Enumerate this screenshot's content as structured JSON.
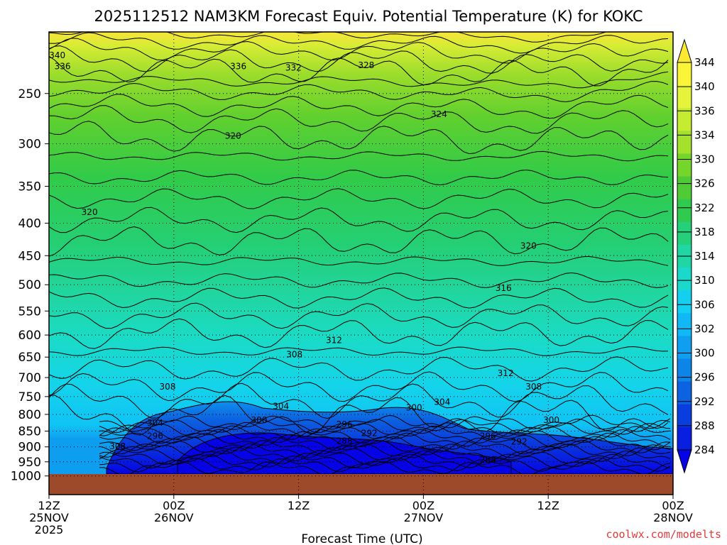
{
  "chart_data": {
    "type": "heatmap",
    "title": "2025112512 NAM3KM Forecast Equiv. Potential Temperature (K) for KOKC",
    "xlabel": "Forecast Time (UTC)",
    "ylabel": "",
    "x_ticks": [
      {
        "line1": "12Z",
        "line2": "25NOV",
        "line3": "2025",
        "hours": 0
      },
      {
        "line1": "00Z",
        "line2": "26NOV",
        "line3": "",
        "hours": 12
      },
      {
        "line1": "12Z",
        "line2": "",
        "line3": "",
        "hours": 24
      },
      {
        "line1": "00Z",
        "line2": "27NOV",
        "line3": "",
        "hours": 36
      },
      {
        "line1": "12Z",
        "line2": "",
        "line3": "",
        "hours": 48
      },
      {
        "line1": "00Z",
        "line2": "28NOV",
        "line3": "",
        "hours": 60
      }
    ],
    "y_ticks": [
      "250",
      "300",
      "350",
      "400",
      "450",
      "500",
      "550",
      "600",
      "650",
      "700",
      "750",
      "800",
      "850",
      "900",
      "950",
      "1000"
    ],
    "y_axis": "pressure (hPa), log scale, decreasing upward",
    "ylim": [
      1000,
      200
    ],
    "xlim": [
      0,
      60
    ],
    "colorbar": {
      "ticks": [
        "344",
        "340",
        "336",
        "334",
        "330",
        "326",
        "322",
        "318",
        "314",
        "310",
        "306",
        "302",
        "300",
        "296",
        "292",
        "288",
        "284"
      ],
      "colors": [
        "#fde832",
        "#fbf53a",
        "#e6f33b",
        "#c6ec31",
        "#a3e12d",
        "#76d52b",
        "#4fcc35",
        "#2fcb4e",
        "#25d07a",
        "#20d6a5",
        "#1ad9cc",
        "#14cff0",
        "#10b8f5",
        "#0e9ff0",
        "#0d85e8",
        "#0c62e0",
        "#0a3ddd",
        "#081ee0",
        "#0604e6"
      ]
    },
    "ground_color": "#9c4a2a",
    "contour_labels": [
      {
        "text": "340",
        "t": 0.8,
        "p": 218
      },
      {
        "text": "336",
        "t": 1.3,
        "p": 227
      },
      {
        "text": "336",
        "t": 18.2,
        "p": 227
      },
      {
        "text": "332",
        "t": 23.5,
        "p": 228
      },
      {
        "text": "328",
        "t": 30.5,
        "p": 226
      },
      {
        "text": "324",
        "t": 37.5,
        "p": 270
      },
      {
        "text": "320",
        "t": 17.7,
        "p": 292
      },
      {
        "text": "320",
        "t": 3.9,
        "p": 385
      },
      {
        "text": "320",
        "t": 46.1,
        "p": 435
      },
      {
        "text": "316",
        "t": 43.7,
        "p": 507
      },
      {
        "text": "312",
        "t": 27.4,
        "p": 612
      },
      {
        "text": "312",
        "t": 43.9,
        "p": 690
      },
      {
        "text": "308",
        "t": 23.6,
        "p": 645
      },
      {
        "text": "308",
        "t": 11.4,
        "p": 725
      },
      {
        "text": "308",
        "t": 46.6,
        "p": 725
      },
      {
        "text": "308",
        "t": 6.6,
        "p": 900
      },
      {
        "text": "304",
        "t": 22.3,
        "p": 778
      },
      {
        "text": "304",
        "t": 37.8,
        "p": 766
      },
      {
        "text": "304",
        "t": 10.2,
        "p": 826
      },
      {
        "text": "300",
        "t": 20.2,
        "p": 818
      },
      {
        "text": "300",
        "t": 35.1,
        "p": 782
      },
      {
        "text": "300",
        "t": 48.3,
        "p": 818
      },
      {
        "text": "296",
        "t": 10.2,
        "p": 866
      },
      {
        "text": "296",
        "t": 28.4,
        "p": 830
      },
      {
        "text": "296",
        "t": 42.2,
        "p": 866
      },
      {
        "text": "292",
        "t": 30.8,
        "p": 858
      },
      {
        "text": "292",
        "t": 45.2,
        "p": 885
      },
      {
        "text": "288",
        "t": 28.4,
        "p": 882
      },
      {
        "text": "288",
        "t": 42.2,
        "p": 945
      }
    ]
  },
  "credit": "coolwx.com/modelts"
}
